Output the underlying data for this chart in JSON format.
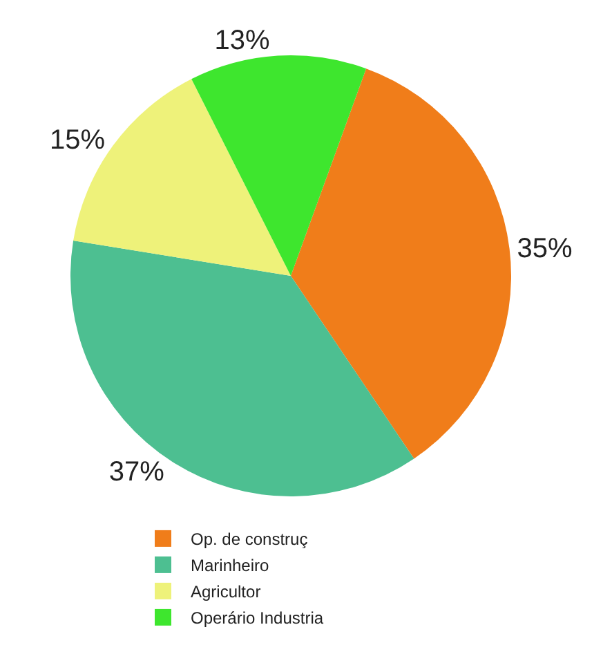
{
  "chart_data": {
    "type": "pie",
    "categories": [
      "Op. de construç",
      "Marinheiro",
      "Agricultor",
      "Operário Industria"
    ],
    "values": [
      35,
      37,
      15,
      13
    ],
    "colors": [
      "#f07d1a",
      "#4dbf91",
      "#eef27a",
      "#3ee62e"
    ],
    "value_labels": [
      "35%",
      "37%",
      "15%",
      "13%"
    ],
    "legend": "bottom"
  }
}
